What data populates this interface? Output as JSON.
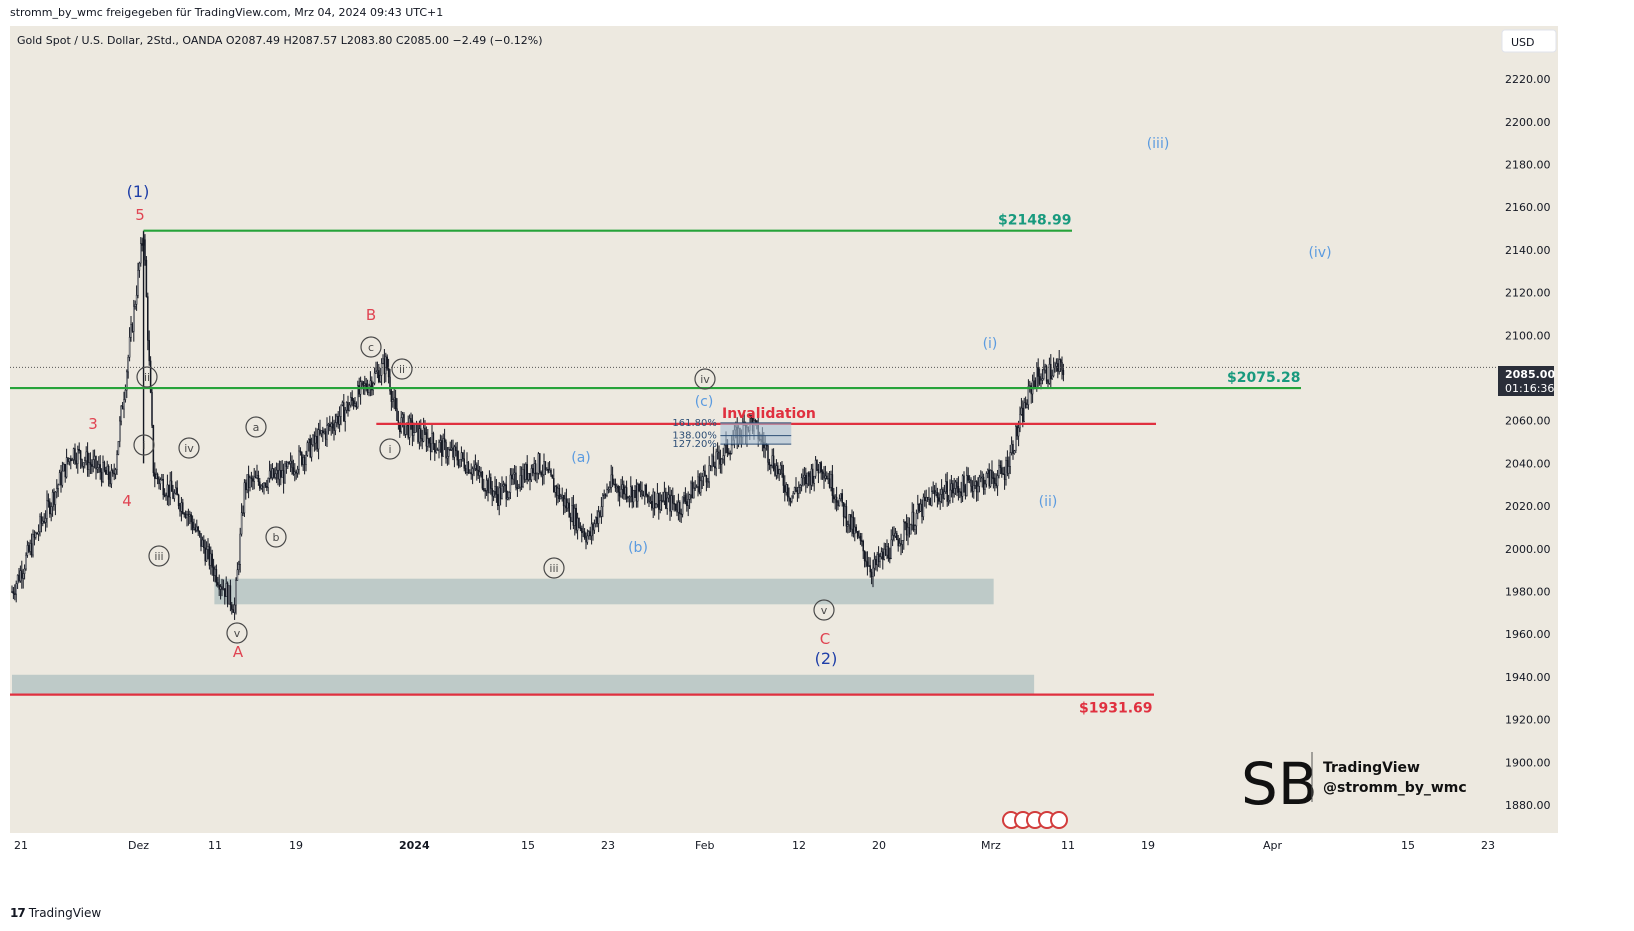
{
  "header": {
    "topline": "stromm_by_wmc freigegeben für TradingView.com, Mrz 04, 2024 09:43 UTC+1",
    "legend": "Gold Spot / U.S. Dollar, 2Std., OANDA  O2087.49  H2087.57  L2083.80  C2085.00  −2.49 (−0.12%)",
    "currency": "USD"
  },
  "price_tag": {
    "value": "2085.00",
    "countdown": "01:16:36"
  },
  "footer": {
    "brand": "TradingView",
    "logo_glyph": "17"
  },
  "watermark": {
    "line1": "TradingView",
    "line2": "@stromm_by_wmc",
    "logo": "SB"
  },
  "colors": {
    "background": "#ede9e0",
    "green": "#27a33a",
    "red": "#e0303f",
    "teal": "#189a7e",
    "zone": "#b5c4c3",
    "candle": "#131722",
    "blue_dark": "#1f3fa8",
    "blue_light": "#5b9be0",
    "label_red": "#e04452",
    "gray": "#4a4a4a"
  },
  "chart_data": {
    "type": "line",
    "ylim": [
      1870,
      2235
    ],
    "y_ticks": [
      1880,
      1900,
      1920,
      1940,
      1960,
      1980,
      2000,
      2020,
      2040,
      2060,
      2080,
      2100,
      2120,
      2140,
      2160,
      2180,
      2200,
      2220
    ],
    "x_ticks": [
      "21",
      "Dez",
      "11",
      "19",
      "2024",
      "15",
      "23",
      "Feb",
      "12",
      "20",
      "Mrz",
      "11",
      "19",
      "Apr",
      "15",
      "23"
    ],
    "series": [
      {
        "x": [
          "Nov 21",
          "Nov 27",
          "Dez 01",
          "Dez 04",
          "Dez 05",
          "Dez 08",
          "Dez 11",
          "Dez 13",
          "Dez 14",
          "Dez 18",
          "Dez 22",
          "Dez 28",
          "Dez 29",
          "Jan 05",
          "Jan 08",
          "Jan 12",
          "Jan 17",
          "Jan 19",
          "Jan 26",
          "Feb 01",
          "Feb 02",
          "Feb 06",
          "Feb 09",
          "Feb 14",
          "Feb 20",
          "Feb 27",
          "Mrz 01",
          "Mrz 04"
        ],
        "values": [
          1980,
          2046,
          2032,
          2148.99,
          2035,
          2020,
          1990,
          1973,
          2030,
          2035,
          2055,
          2087,
          2060,
          2040,
          2025,
          2040,
          2005,
          2030,
          2020,
          2055,
          2060,
          2025,
          2040,
          1990,
          2025,
          2035,
          2080,
          2085
        ]
      }
    ],
    "levels": [
      {
        "label": "$2148.99",
        "value": 2148.99
      },
      {
        "label": "$2075.28",
        "value": 2075.28
      },
      {
        "label": "$1931.69",
        "value": 1931.69
      },
      {
        "label": "Invalidation",
        "value": 2058.5
      }
    ],
    "zones": [
      {
        "from_date": "Dez 11",
        "to_date": "Feb 26",
        "low": 1974,
        "high": 1986
      },
      {
        "from_date": "Nov 21",
        "to_date": "Mrz 01",
        "low": 1932,
        "high": 1941
      }
    ],
    "fib_levels": [
      {
        "label": "161.80%",
        "value": 2059
      },
      {
        "label": "138.00%",
        "value": 2053
      },
      {
        "label": "127.20%",
        "value": 2049
      }
    ],
    "wave_labels": {
      "dark_blue": [
        "(1)",
        "(2)"
      ],
      "red": [
        "5",
        "3",
        "4",
        "A",
        "B",
        "C"
      ],
      "light_blue": [
        "(a)",
        "(b)",
        "(c)",
        "(i)",
        "(ii)",
        "(iii)",
        "(iv)"
      ],
      "circled": [
        "ii",
        "i",
        "iv",
        "iii",
        "v",
        "a",
        "b",
        "c",
        "ii",
        "i",
        "iii",
        "iv",
        "v"
      ]
    }
  }
}
